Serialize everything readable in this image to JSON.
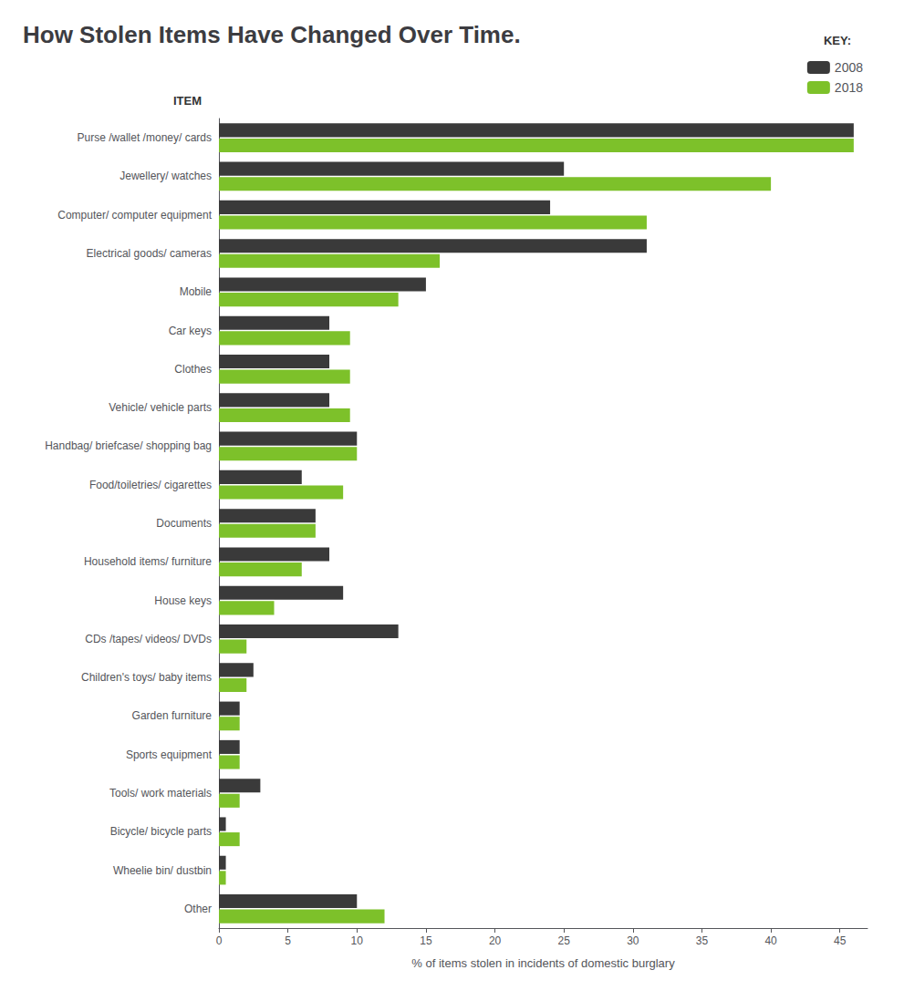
{
  "chart_data": {
    "type": "bar",
    "orientation": "horizontal",
    "title": "How Stolen Items Have Changed Over Time.",
    "xlabel": "% of items stolen in incidents of domestic burglary",
    "ylabel": "ITEM",
    "categories": [
      "Purse /wallet /money/ cards",
      "Jewellery/ watches",
      "Computer/ computer equipment",
      "Electrical goods/ cameras",
      "Mobile",
      "Car keys",
      "Clothes",
      "Vehicle/ vehicle parts",
      "Handbag/ briefcase/ shopping bag",
      "Food/toiletries/ cigarettes",
      "Documents",
      "Household items/ furniture",
      "House keys",
      "CDs /tapes/ videos/ DVDs",
      "Children's toys/ baby items",
      "Garden furniture",
      "Sports equipment",
      "Tools/ work materials",
      "Bicycle/ bicycle parts",
      "Wheelie bin/ dustbin",
      "Other"
    ],
    "series": [
      {
        "name": "2008",
        "color": "#3a3a3a",
        "values": [
          46,
          25,
          24,
          31,
          15,
          8,
          8,
          8,
          10,
          6,
          7,
          8,
          9,
          13,
          2.5,
          1.5,
          1.5,
          3,
          0.5,
          0.5,
          10
        ]
      },
      {
        "name": "2018",
        "color": "#7dc12a",
        "values": [
          46,
          40,
          31,
          16,
          13,
          9.5,
          9.5,
          9.5,
          10,
          9,
          7,
          6,
          4,
          2,
          2,
          1.5,
          1.5,
          1.5,
          1.5,
          0.5,
          12
        ]
      }
    ],
    "xlim": [
      0,
      47
    ],
    "xticks": [
      0,
      5,
      10,
      15,
      20,
      25,
      30,
      35,
      40,
      45
    ],
    "grid": false,
    "legend": "top-right",
    "annotations": [
      "KEY:"
    ]
  }
}
